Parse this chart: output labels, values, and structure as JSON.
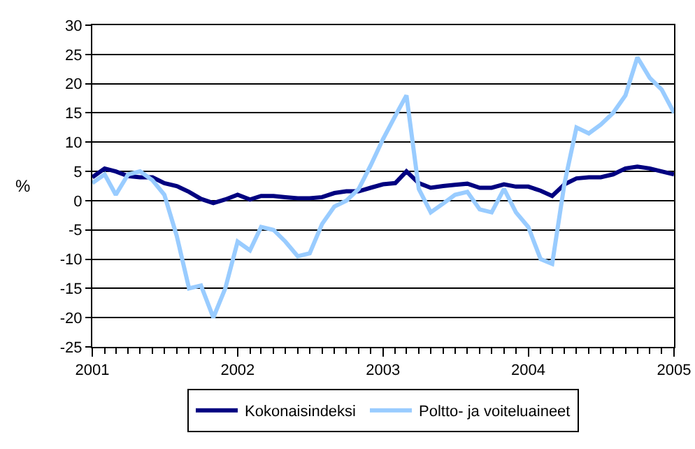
{
  "chart_data": {
    "type": "line",
    "ylabel": "%",
    "x": [
      "2001-01",
      "2001-02",
      "2001-03",
      "2001-04",
      "2001-05",
      "2001-06",
      "2001-07",
      "2001-08",
      "2001-09",
      "2001-10",
      "2001-11",
      "2001-12",
      "2002-01",
      "2002-02",
      "2002-03",
      "2002-04",
      "2002-05",
      "2002-06",
      "2002-07",
      "2002-08",
      "2002-09",
      "2002-10",
      "2002-11",
      "2002-12",
      "2003-01",
      "2003-02",
      "2003-03",
      "2003-04",
      "2003-05",
      "2003-06",
      "2003-07",
      "2003-08",
      "2003-09",
      "2003-10",
      "2003-11",
      "2003-12",
      "2004-01",
      "2004-02",
      "2004-03",
      "2004-04",
      "2004-05",
      "2004-06",
      "2004-07",
      "2004-08",
      "2004-09",
      "2004-10",
      "2004-11",
      "2004-12",
      "2005-01"
    ],
    "series": [
      {
        "name": "Kokonaisindeksi",
        "color": "#000080",
        "values": [
          4,
          5.5,
          5,
          4.2,
          4,
          4,
          3,
          2.5,
          1.5,
          0.3,
          -0.4,
          0.2,
          1,
          0.2,
          0.8,
          0.8,
          0.6,
          0.4,
          0.4,
          0.6,
          1.3,
          1.6,
          1.6,
          2.2,
          2.8,
          3,
          5,
          3,
          2.2,
          2.5,
          2.7,
          2.9,
          2.2,
          2.2,
          2.8,
          2.4,
          2.4,
          1.7,
          0.8,
          2.8,
          3.8,
          4,
          4,
          4.5,
          5.5,
          5.8,
          5.5,
          5,
          4.5
        ]
      },
      {
        "name": "Poltto- ja voiteluaineet",
        "color": "#99ccff",
        "values": [
          3,
          4.5,
          1,
          4.5,
          5,
          3.5,
          1,
          -6,
          -15,
          -14.5,
          -20,
          -15,
          -7,
          -8.5,
          -4.5,
          -5,
          -7,
          -9.5,
          -9,
          -4,
          -1,
          0,
          2,
          6,
          10.5,
          14.5,
          18,
          2,
          -2,
          -0.5,
          1,
          1.5,
          -1.5,
          -2,
          2,
          -2,
          -4.5,
          -10,
          -10.8,
          3,
          12.5,
          11.5,
          13,
          15,
          18,
          24.5,
          21,
          19,
          15
        ]
      }
    ],
    "xlim": [
      "2001-01",
      "2005-01"
    ],
    "xticks": [
      {
        "value": "2001-01",
        "label": "2001"
      },
      {
        "value": "2002-01",
        "label": "2002"
      },
      {
        "value": "2003-01",
        "label": "2003"
      },
      {
        "value": "2004-01",
        "label": "2004"
      },
      {
        "value": "2005-01",
        "label": "2005"
      }
    ],
    "ylim": [
      -25,
      30
    ],
    "yticks": [
      -25,
      -20,
      -15,
      -10,
      -5,
      0,
      5,
      10,
      15,
      20,
      25,
      30
    ],
    "grid": "y",
    "legend": "bottom",
    "marker": "none",
    "line_style": "solid"
  }
}
